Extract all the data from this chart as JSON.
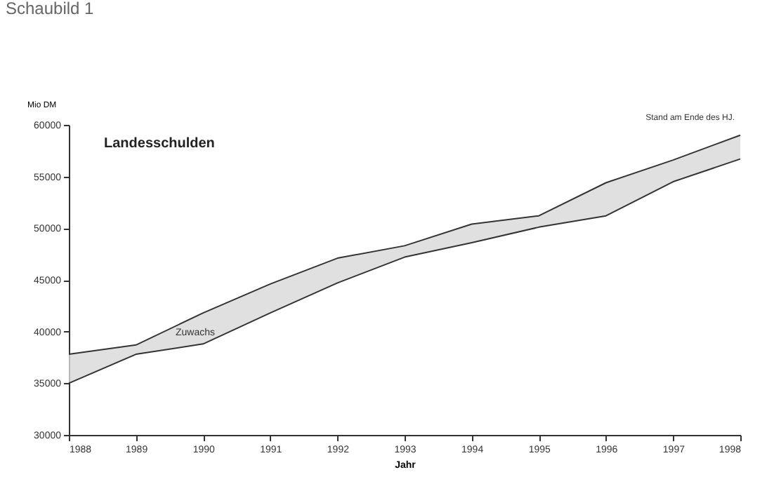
{
  "chart_data": {
    "type": "line",
    "title": "Schaubild 1",
    "xlabel": "Jahr",
    "ylabel": "Mio DM",
    "x": [
      1988,
      1989,
      1990,
      1991,
      1992,
      1993,
      1994,
      1995,
      1996,
      1997,
      1998
    ],
    "series": [
      {
        "color": "#333333",
        "values": [
          37800,
          38700,
          41800,
          44600,
          47100,
          48300,
          50400,
          51200,
          54400,
          56600,
          59000
        ],
        "lower": [
          35000,
          37800,
          38800,
          41800,
          44700,
          47200,
          48600,
          50100,
          51200,
          54500,
          56700
        ],
        "upper": [
          37800,
          38700,
          41800,
          44600,
          47100,
          48300,
          50400,
          51200,
          54400,
          56600,
          59000
        ]
      },
      {
        "color": "#333333",
        "values": [
          35000,
          37800,
          38800,
          41800,
          44700,
          47200,
          48600,
          50100,
          51200,
          54500,
          56700
        ]
      }
    ],
    "annotations": [
      "Landesschulden",
      "Zuwachs",
      {
        "text": "Stand am Ende des HJ.",
        "x": 1998,
        "y": 59000
      }
    ],
    "xlim": [
      1988,
      1998
    ],
    "xticks": [
      1988,
      1989,
      1990,
      1991,
      1992,
      1993,
      1994,
      1995,
      1996,
      1997,
      1998
    ],
    "ylim": [
      30000,
      60000
    ],
    "yticks": [
      30000,
      35000,
      40000,
      45000,
      50000,
      55000,
      60000
    ],
    "grid": false,
    "marker": "none",
    "line_style": "solid"
  }
}
